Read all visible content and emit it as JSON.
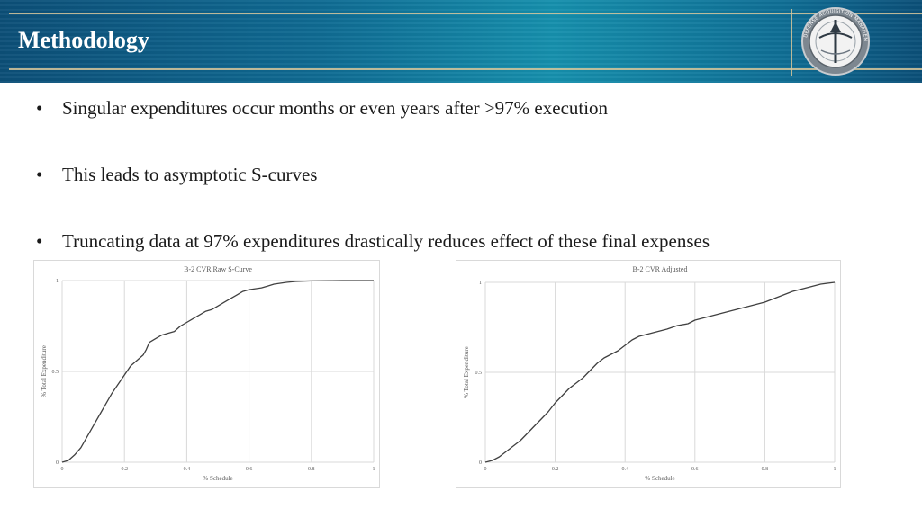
{
  "header": {
    "title": "Methodology",
    "logo_icon": "seal-logo-icon",
    "logo_text": "DEFENSE ACQUISITION MANAGEMENT CENTER"
  },
  "bullets": [
    "Singular expenditures occur months or even years after >97% execution",
    "This leads to asymptotic S-curves",
    "Truncating data at 97% expenditures drastically reduces effect of these final expenses"
  ],
  "bullet_glyph": "•",
  "colors": {
    "header_dark": "#0c4f78",
    "header_mid": "#1690ad",
    "gold_line": "#d9c79a",
    "series_line": "#404040",
    "grid": "#d9d9d9"
  },
  "chart_data": [
    {
      "type": "line",
      "title": "B-2 CVR Raw S-Curve",
      "xlabel": "% Schedule",
      "ylabel": "% Total Expenditure",
      "xlim": [
        0,
        1
      ],
      "ylim": [
        0,
        1
      ],
      "x_ticks": [
        "0",
        "0.2",
        "0.4",
        "0.6",
        "0.8",
        "1"
      ],
      "y_ticks": [
        "0",
        "0.5",
        "1"
      ],
      "grid": true,
      "series": [
        {
          "x": [
            0,
            0.02,
            0.04,
            0.06,
            0.08,
            0.1,
            0.12,
            0.14,
            0.16,
            0.18,
            0.2,
            0.22,
            0.24,
            0.26,
            0.27,
            0.28,
            0.3,
            0.32,
            0.34,
            0.36,
            0.38,
            0.4,
            0.42,
            0.44,
            0.46,
            0.48,
            0.5,
            0.52,
            0.54,
            0.56,
            0.58,
            0.6,
            0.62,
            0.64,
            0.66,
            0.68,
            0.7,
            0.72,
            0.75,
            0.8,
            0.9,
            1.0
          ],
          "values": [
            0,
            0.01,
            0.04,
            0.08,
            0.14,
            0.2,
            0.26,
            0.32,
            0.38,
            0.43,
            0.48,
            0.53,
            0.56,
            0.59,
            0.62,
            0.66,
            0.68,
            0.7,
            0.71,
            0.72,
            0.75,
            0.77,
            0.79,
            0.81,
            0.83,
            0.84,
            0.86,
            0.88,
            0.9,
            0.92,
            0.94,
            0.95,
            0.955,
            0.96,
            0.97,
            0.98,
            0.985,
            0.99,
            0.995,
            0.998,
            1.0,
            1.0
          ]
        }
      ]
    },
    {
      "type": "line",
      "title": "B-2 CVR Adjusted",
      "xlabel": "% Schedule",
      "ylabel": "% Total Expenditure",
      "xlim": [
        0,
        1
      ],
      "ylim": [
        0,
        1
      ],
      "x_ticks": [
        "0",
        "0.2",
        "0.4",
        "0.6",
        "0.8",
        "1"
      ],
      "y_ticks": [
        "0",
        "0.5",
        "1"
      ],
      "grid": true,
      "series": [
        {
          "x": [
            0,
            0.02,
            0.04,
            0.06,
            0.08,
            0.1,
            0.12,
            0.14,
            0.16,
            0.18,
            0.2,
            0.22,
            0.24,
            0.26,
            0.28,
            0.3,
            0.32,
            0.34,
            0.36,
            0.38,
            0.4,
            0.42,
            0.44,
            0.46,
            0.48,
            0.5,
            0.52,
            0.55,
            0.58,
            0.6,
            0.64,
            0.68,
            0.72,
            0.76,
            0.8,
            0.84,
            0.88,
            0.92,
            0.96,
            1.0
          ],
          "values": [
            0,
            0.01,
            0.03,
            0.06,
            0.09,
            0.12,
            0.16,
            0.2,
            0.24,
            0.28,
            0.33,
            0.37,
            0.41,
            0.44,
            0.47,
            0.51,
            0.55,
            0.58,
            0.6,
            0.62,
            0.65,
            0.68,
            0.7,
            0.71,
            0.72,
            0.73,
            0.74,
            0.76,
            0.77,
            0.79,
            0.81,
            0.83,
            0.85,
            0.87,
            0.89,
            0.92,
            0.95,
            0.97,
            0.99,
            1.0
          ]
        }
      ]
    }
  ]
}
